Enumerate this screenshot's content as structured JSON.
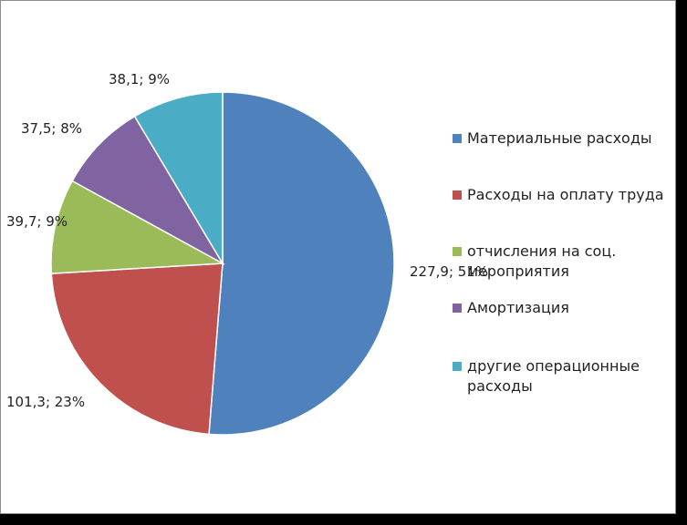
{
  "chart_data": {
    "type": "pie",
    "categories": [
      "Материальные расходы",
      "Расходы на оплату труда",
      "отчисления на соц. мероприятия",
      "Амортизация",
      "другие операционные расходы"
    ],
    "values": [
      227.9,
      101.3,
      39.7,
      37.5,
      38.1
    ],
    "data_labels": [
      "227,9; 51%",
      "101,3; 23%",
      "39,7; 9%",
      "37,5; 8%",
      "38,1; 9%"
    ],
    "colors": [
      "#4f81bd",
      "#c0504d",
      "#9bbb59",
      "#8064a2",
      "#4bacc6"
    ],
    "legend_position": "right",
    "start_angle_deg": 0,
    "direction": "clockwise"
  }
}
